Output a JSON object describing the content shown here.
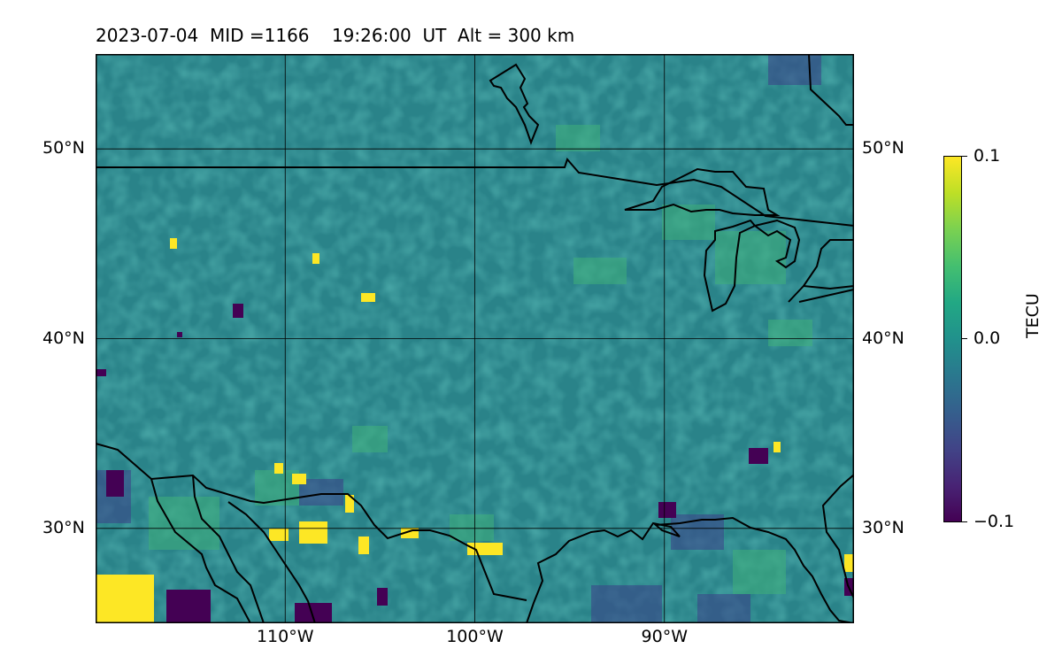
{
  "title": "2023-07-04  MID =1166    19:26:00  UT  Alt = 300 km",
  "map": {
    "projection": "equirectangular",
    "lon_range": [
      -120,
      -80
    ],
    "lat_range": [
      25,
      55
    ],
    "gridlines": true
  },
  "lat_ticks": [
    {
      "label": "50°N",
      "value": 50
    },
    {
      "label": "40°N",
      "value": 40
    },
    {
      "label": "30°N",
      "value": 30
    }
  ],
  "lon_ticks": [
    {
      "label": "110°W",
      "value": -110
    },
    {
      "label": "100°W",
      "value": -100
    },
    {
      "label": "90°W",
      "value": -90
    }
  ],
  "colorbar": {
    "label": "TECU",
    "colormap": "viridis",
    "min": -0.1,
    "max": 0.1,
    "tick_labels": [
      "0.1",
      "0.0",
      "−0.1"
    ]
  },
  "colors": {
    "background_field": "#2a8a8a",
    "high": "#fde725",
    "low": "#440154",
    "coastline": "#000000"
  }
}
